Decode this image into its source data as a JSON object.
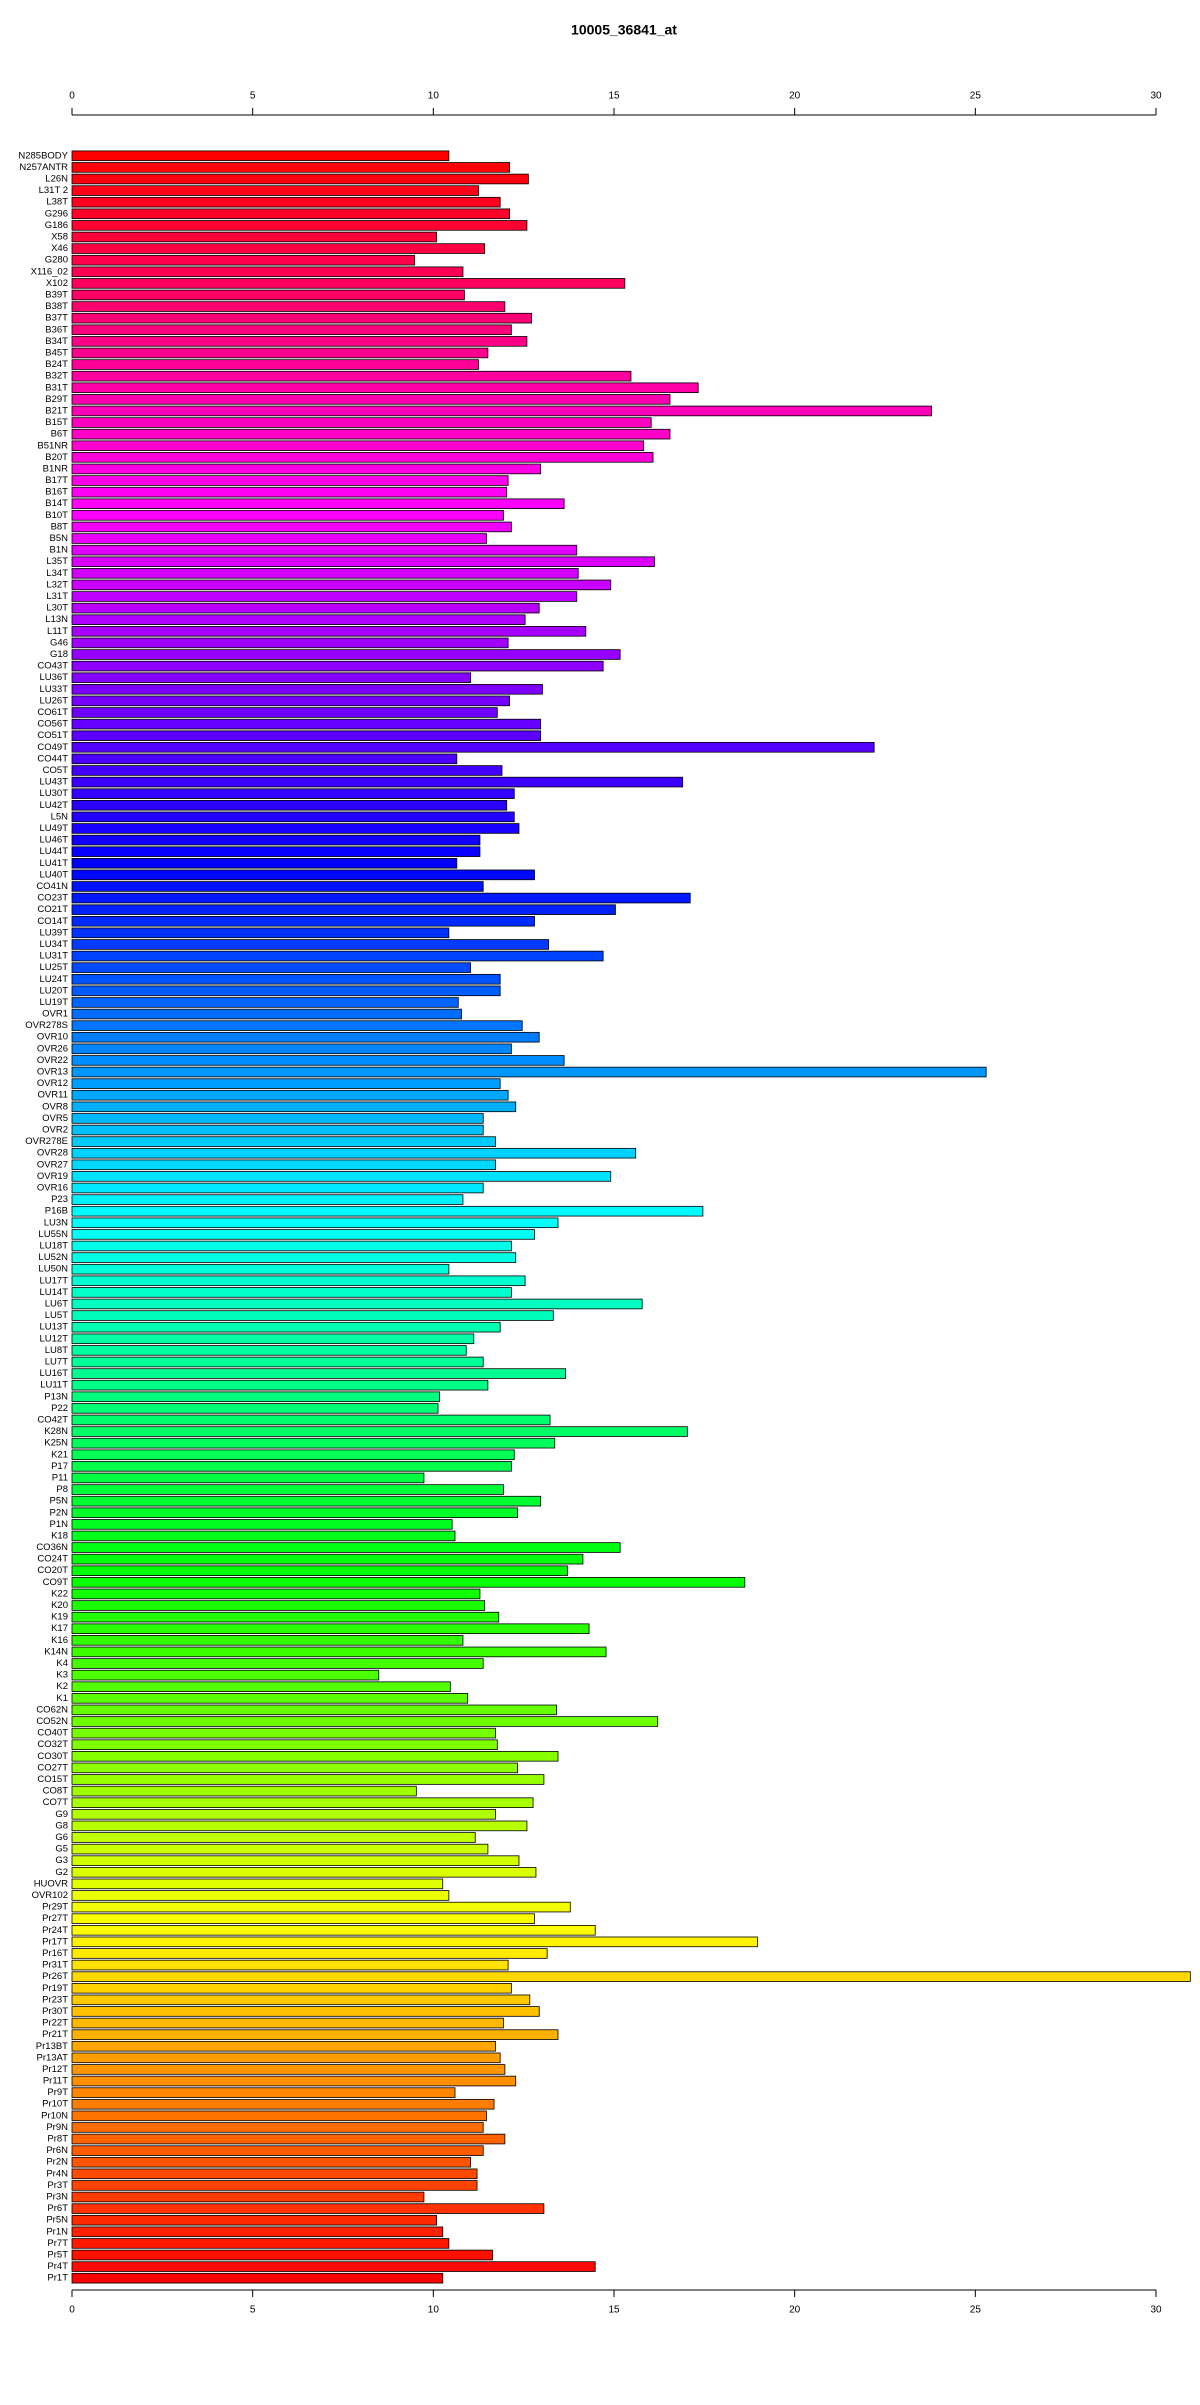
{
  "chart_data": {
    "type": "bar",
    "orientation": "horizontal",
    "title": "10005_36841_at",
    "categories": [
      "N285BODY",
      "N257ANTR",
      "L26N",
      "L31T 2",
      "L38T",
      "G296",
      "G186",
      "X58",
      "X46",
      "G280",
      "X116_02",
      "X102",
      "B39T",
      "B38T",
      "B37T",
      "B36T",
      "B34T",
      "B45T",
      "B24T",
      "B32T",
      "B31T",
      "B29T",
      "B21T",
      "B15T",
      "B6T",
      "B51NR",
      "B20T",
      "B1NR",
      "B17T",
      "B16T",
      "B14T",
      "B10T",
      "B8T",
      "B5N",
      "B1N",
      "L35T",
      "L34T",
      "L32T",
      "L31T",
      "L30T",
      "L13N",
      "L11T",
      "G46",
      "G18",
      "CO43T",
      "LU36T",
      "LU33T",
      "LU26T",
      "CO61T",
      "CO56T",
      "CO51T",
      "CO49T",
      "CO44T",
      "CO5T",
      "LU43T",
      "LU30T",
      "LU42T",
      "L5N",
      "LU49T",
      "LU46T",
      "LU44T",
      "LU41T",
      "LU40T",
      "CO41N",
      "CO23T",
      "CO21T",
      "CO14T",
      "LU39T",
      "LU34T",
      "LU31T",
      "LU25T",
      "LU24T",
      "LU20T",
      "LU19T",
      "OVR1",
      "OVR278S",
      "OVR10",
      "OVR26",
      "OVR22",
      "OVR13",
      "OVR12",
      "OVR11",
      "OVR8",
      "OVR5",
      "OVR2",
      "OVR278E",
      "OVR28",
      "OVR27",
      "OVR19",
      "OVR16",
      "P23",
      "P16B",
      "LU3N",
      "LU55N",
      "LU18T",
      "LU52N",
      "LU50N",
      "LU17T",
      "LU14T",
      "LU6T",
      "LU5T",
      "LU13T",
      "LU12T",
      "LU8T",
      "LU7T",
      "LU16T",
      "LU11T",
      "P13N",
      "P22",
      "CO42T",
      "K28N",
      "K25N",
      "K21",
      "P17",
      "P11",
      "P8",
      "P5N",
      "P2N",
      "P1N",
      "K18",
      "CO36N",
      "CO24T",
      "CO20T",
      "CO9T",
      "K22",
      "K20",
      "K19",
      "K17",
      "K16",
      "K14N",
      "K4",
      "K3",
      "K2",
      "K1",
      "CO62N",
      "CO52N",
      "CO40T",
      "CO32T",
      "CO30T",
      "CO27T",
      "CO15T",
      "CO8T",
      "CO7T",
      "G9",
      "G8",
      "G6",
      "G5",
      "G3",
      "G2",
      "HUOVR",
      "OVR102",
      "Pr29T",
      "Pr27T",
      "Pr24T",
      "Pr17T",
      "Pr16T",
      "Pr31T",
      "Pr26T",
      "Pr19T",
      "Pr23T",
      "Pr30T",
      "Pr22T",
      "Pr21T",
      "Pr13BT",
      "Pr13AT",
      "Pr12T",
      "Pr11T",
      "Pr9T",
      "Pr10T",
      "Pr10N",
      "Pr9N",
      "Pr8T",
      "Pr6N",
      "Pr2N",
      "Pr4N",
      "Pr3T",
      "Pr3N",
      "Pr6T",
      "Pr5N",
      "Pr1N",
      "Pr7T",
      "Pr5T",
      "Pr4T",
      "Pr1T"
    ],
    "values": [
      10.43,
      12.11,
      12.63,
      11.25,
      11.85,
      12.11,
      12.59,
      10.09,
      11.42,
      9.48,
      10.82,
      15.3,
      10.86,
      11.98,
      12.72,
      12.16,
      12.59,
      11.51,
      11.25,
      15.47,
      17.33,
      16.55,
      23.79,
      16.03,
      16.55,
      15.82,
      16.08,
      12.97,
      12.07,
      12.03,
      13.62,
      11.94,
      12.16,
      11.47,
      13.97,
      16.12,
      14.01,
      14.91,
      13.97,
      12.93,
      12.54,
      14.22,
      12.07,
      15.17,
      14.7,
      11.03,
      13.02,
      12.11,
      11.77,
      12.97,
      12.97,
      22.2,
      10.65,
      11.9,
      16.9,
      12.24,
      12.03,
      12.24,
      12.37,
      11.29,
      11.29,
      10.65,
      12.8,
      11.38,
      17.11,
      15.04,
      12.8,
      10.43,
      13.19,
      14.7,
      11.03,
      11.85,
      11.85,
      10.69,
      10.78,
      12.46,
      12.93,
      12.16,
      13.62,
      25.3,
      11.85,
      12.07,
      12.28,
      11.38,
      11.38,
      11.72,
      15.6,
      11.72,
      14.91,
      11.38,
      10.82,
      17.46,
      13.45,
      12.8,
      12.16,
      12.28,
      10.43,
      12.54,
      12.16,
      15.78,
      13.32,
      11.85,
      11.12,
      10.91,
      11.38,
      13.66,
      11.51,
      10.17,
      10.13,
      13.23,
      17.03,
      13.36,
      12.24,
      12.16,
      9.74,
      11.94,
      12.97,
      12.33,
      10.52,
      10.6,
      15.17,
      14.14,
      13.71,
      18.62,
      11.29,
      11.42,
      11.81,
      14.31,
      10.82,
      14.78,
      11.38,
      8.49,
      10.47,
      10.95,
      13.41,
      16.21,
      11.72,
      11.77,
      13.45,
      12.33,
      13.06,
      9.53,
      12.76,
      11.72,
      12.59,
      11.16,
      11.51,
      12.37,
      12.84,
      10.26,
      10.43,
      13.79,
      12.8,
      14.48,
      18.97,
      13.15,
      12.07,
      30.95,
      12.16,
      12.67,
      12.93,
      11.94,
      13.45,
      11.72,
      11.85,
      11.98,
      12.28,
      10.6,
      11.68,
      11.47,
      11.38,
      11.98,
      11.38,
      11.03,
      11.21,
      11.21,
      9.74,
      13.06,
      10.09,
      10.26,
      10.43,
      11.64,
      14.48,
      10.26
    ],
    "xlim": [
      0,
      31
    ],
    "xticks": [
      0,
      5,
      10,
      15,
      20,
      25,
      30
    ],
    "colormap": "rainbow",
    "grid": false
  }
}
